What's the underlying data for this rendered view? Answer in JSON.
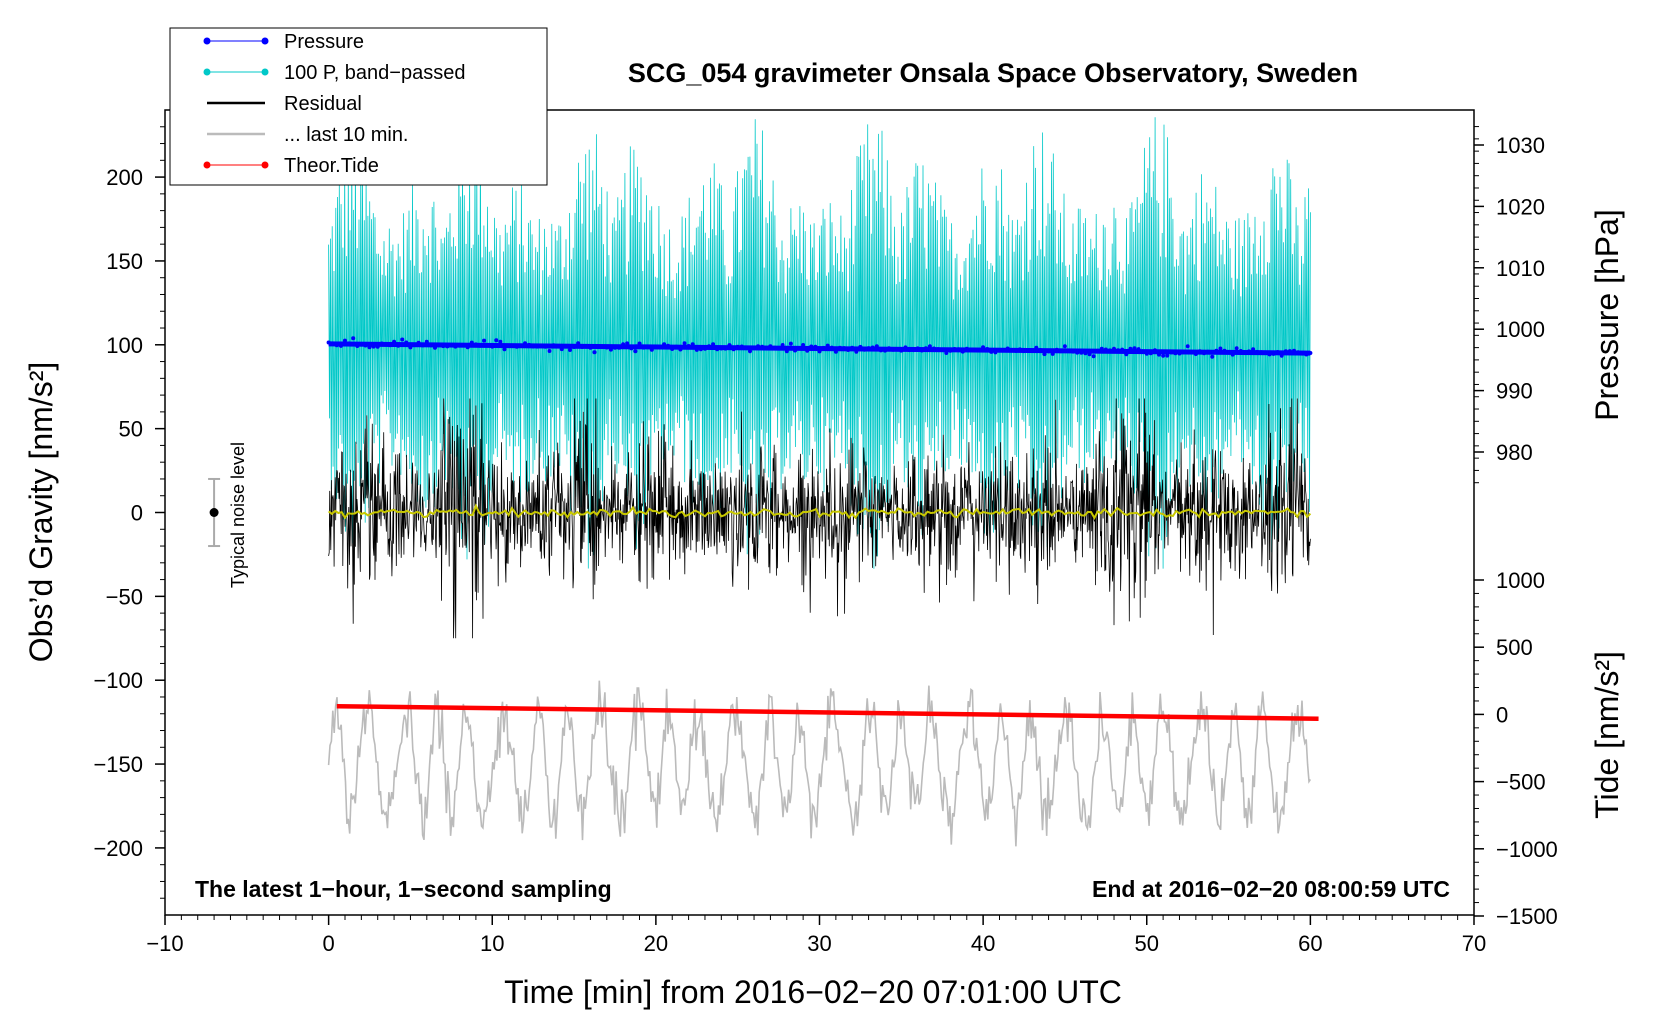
{
  "chart_data": {
    "type": "line",
    "title": "SCG_054 gravimeter Onsala Space Observatory, Sweden",
    "xlabel": "Time [min] from 2016−02−20 07:01:00 UTC",
    "ylabel_left": "Obs’d Gravity [nm/s²]",
    "ylabel_right_pressure": "Pressure [hPa]",
    "ylabel_right_tide": "Tide [nm/s²]",
    "xlim": [
      -10,
      70
    ],
    "ylim_left": [
      -240,
      240
    ],
    "xticks": [
      -10,
      0,
      10,
      20,
      30,
      40,
      50,
      60,
      70
    ],
    "xtick_labels": [
      "−10",
      "0",
      "10",
      "20",
      "30",
      "40",
      "50",
      "60",
      "70"
    ],
    "yticks_left": [
      200,
      150,
      100,
      50,
      0,
      -50,
      -100,
      -150,
      -200
    ],
    "ytick_labels_left": [
      "200",
      "150",
      "100",
      "50",
      "0",
      "−50",
      "−100",
      "−150",
      "−200"
    ],
    "pressure_ticks": [
      1030,
      1020,
      1010,
      1000,
      990,
      980
    ],
    "pressure_tick_labels": [
      "1030",
      "1020",
      "1010",
      "1000",
      "990",
      "980"
    ],
    "pressure_axis": {
      "min": 975,
      "max": 1033
    },
    "tide_ticks": [
      1000,
      500,
      0,
      -500,
      -1000,
      -1500
    ],
    "tide_tick_labels": [
      "1000",
      "500",
      "0",
      "−500",
      "−1000",
      "−1500"
    ],
    "tide_axis": {
      "min": -1500,
      "max": 1000
    },
    "legend_position": "top-left",
    "noise_indicator": {
      "label": "Typical noise level",
      "x": -7,
      "center": 0,
      "half_range": 20
    },
    "series": [
      {
        "name": "Pressure",
        "color": "#0000ff",
        "style": "dots",
        "x_range": [
          0,
          60
        ],
        "start": 997.6,
        "end": 996.1,
        "unit": "hPa"
      },
      {
        "name": "100 P, band−passed",
        "color": "#00c8c8",
        "style": "line",
        "x_range": [
          0,
          60
        ],
        "mean": 100,
        "amplitude": 140,
        "unit": "nm/s²"
      },
      {
        "name": "Residual",
        "color": "#000000",
        "style": "line",
        "x_range": [
          0,
          60
        ],
        "mean": 0,
        "amplitude": 40,
        "min": -75,
        "max": 68,
        "unit": "nm/s²"
      },
      {
        "name": "... last 10 min.",
        "color": "#bbbbbb",
        "style": "line",
        "x_range": [
          0,
          60
        ],
        "mean": -150,
        "amplitude": 45,
        "min": -200,
        "max": -85,
        "unit": "nm/s²"
      },
      {
        "name": "Theor.Tide",
        "color": "#ff0000",
        "style": "dots",
        "x_range": [
          0.5,
          60.5
        ],
        "start": -115.5,
        "end": -123,
        "unit": "nm/s² (left-axis position)"
      }
    ],
    "annotations": {
      "bottom_left": "The latest 1−hour, 1−second sampling",
      "bottom_right": "End at 2016−02−20 08:00:59 UTC"
    }
  },
  "colors": {
    "pressure": "#0000ff",
    "bandpassed": "#00c8c8",
    "residual": "#000000",
    "residual_smooth": "#c8c800",
    "last10": "#bbbbbb",
    "tide": "#ff0000",
    "noise_bar": "#aaaaaa"
  }
}
